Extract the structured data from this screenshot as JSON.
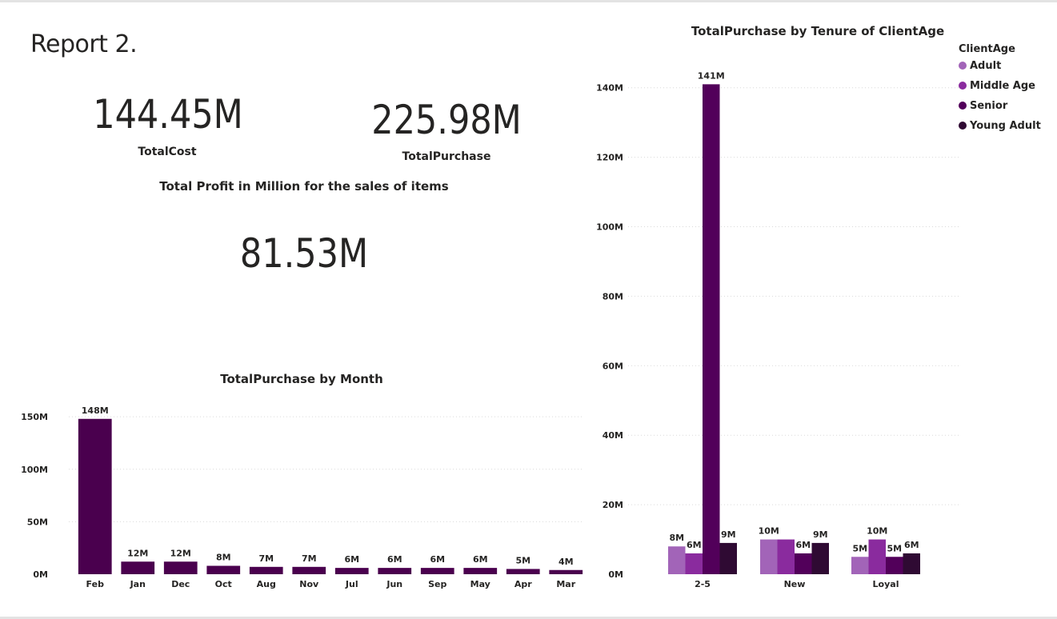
{
  "report": {
    "title": "Report 2."
  },
  "kpis": {
    "total_cost": {
      "value": "144.45M",
      "label": "TotalCost"
    },
    "total_purchase": {
      "value": "225.98M",
      "label": "TotalPurchase"
    },
    "profit": {
      "title": "Total Profit in Million for the sales of items",
      "value": "81.53M"
    }
  },
  "colors": {
    "month_bar": "#4a004e",
    "adult": "#a264b8",
    "middle_age": "#8a2b9e",
    "senior": "#52005a",
    "young_adult": "#2f0a33",
    "grid": "#d9d9d9",
    "text": "#252423"
  },
  "chart_data": [
    {
      "type": "bar",
      "title": "TotalPurchase by Month",
      "xlabel": "",
      "ylabel": "",
      "categories": [
        "Feb",
        "Jan",
        "Dec",
        "Oct",
        "Aug",
        "Nov",
        "Jul",
        "Jun",
        "Sep",
        "May",
        "Apr",
        "Mar"
      ],
      "values": [
        148,
        12,
        12,
        8,
        7,
        7,
        6,
        6,
        6,
        6,
        5,
        4
      ],
      "data_labels": [
        "148M",
        "12M",
        "12M",
        "8M",
        "7M",
        "7M",
        "6M",
        "6M",
        "6M",
        "6M",
        "5M",
        "4M"
      ],
      "unit": "M",
      "ylim": [
        0,
        160
      ],
      "yticks": [
        0,
        50,
        100,
        150
      ],
      "ytick_labels": [
        "0M",
        "50M",
        "100M",
        "150M"
      ],
      "grid": true
    },
    {
      "type": "bar",
      "title": "TotalPurchase by Tenure of ClientAge",
      "xlabel": "",
      "ylabel": "",
      "categories": [
        "2-5",
        "New",
        "Loyal"
      ],
      "legend_title": "ClientAge",
      "legend_position": "top-right",
      "series": [
        {
          "name": "Adult",
          "values": [
            8,
            10,
            5
          ],
          "labels": [
            "8M",
            "10M",
            "5M"
          ]
        },
        {
          "name": "Middle Age",
          "values": [
            6,
            10,
            10
          ],
          "labels": [
            "6M",
            "",
            "10M"
          ]
        },
        {
          "name": "Senior",
          "values": [
            141,
            6,
            5
          ],
          "labels": [
            "141M",
            "6M",
            "5M"
          ]
        },
        {
          "name": "Young Adult",
          "values": [
            9,
            9,
            6
          ],
          "labels": [
            "9M",
            "9M",
            "6M"
          ]
        }
      ],
      "unit": "M",
      "ylim": [
        0,
        145
      ],
      "yticks": [
        0,
        20,
        40,
        60,
        80,
        100,
        120,
        140
      ],
      "ytick_labels": [
        "0M",
        "20M",
        "40M",
        "60M",
        "80M",
        "100M",
        "120M",
        "140M"
      ],
      "grid": true
    }
  ]
}
